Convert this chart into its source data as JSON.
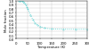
{
  "title": "",
  "xlabel": "Temperature (K)",
  "ylabel": "Mole fraction",
  "xlim": [
    0,
    300
  ],
  "ylim": [
    0,
    1.0
  ],
  "xticks": [
    0,
    50,
    100,
    150,
    200,
    250,
    300
  ],
  "yticks": [
    0.0,
    0.1,
    0.2,
    0.3,
    0.4,
    0.5,
    0.6,
    0.7,
    0.8,
    0.9,
    1.0
  ],
  "curve_color": "#44CCCC",
  "curve_x": [
    10,
    15,
    20,
    25,
    30,
    35,
    40,
    45,
    50,
    60,
    70,
    80,
    90,
    100,
    120,
    150,
    200,
    250,
    300
  ],
  "curve_y": [
    1.0,
    0.999,
    0.997,
    0.99,
    0.97,
    0.94,
    0.895,
    0.84,
    0.775,
    0.63,
    0.51,
    0.42,
    0.36,
    0.32,
    0.28,
    0.258,
    0.252,
    0.25,
    0.25
  ],
  "background_color": "#ffffff",
  "grid_color": "#bbbbbb",
  "tick_fontsize": 2.8,
  "label_fontsize": 2.8,
  "linewidth": 0.6,
  "linestyle": "dotted",
  "fig_width": 1.0,
  "fig_height": 0.57,
  "dpi": 100
}
